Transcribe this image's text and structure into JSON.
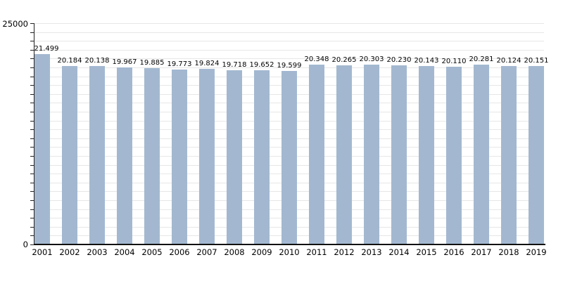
{
  "axis": {
    "y_max_label": "25000",
    "y_min_label": "0"
  },
  "chart_data": {
    "type": "bar",
    "title": "",
    "xlabel": "",
    "ylabel": "",
    "categories": [
      "2001",
      "2002",
      "2003",
      "2004",
      "2005",
      "2006",
      "2007",
      "2008",
      "2009",
      "2010",
      "2011",
      "2012",
      "2013",
      "2014",
      "2015",
      "2016",
      "2017",
      "2018",
      "2019"
    ],
    "values": [
      21499,
      20184,
      20138,
      19967,
      19885,
      19773,
      19824,
      19718,
      19652,
      19599,
      20348,
      20265,
      20303,
      20230,
      20143,
      20110,
      20281,
      20124,
      20151
    ],
    "value_labels": [
      "21.499",
      "20.184",
      "20.138",
      "19.967",
      "19.885",
      "19.773",
      "19.824",
      "19.718",
      "19.652",
      "19.599",
      "20.348",
      "20.265",
      "20.303",
      "20.230",
      "20.143",
      "20.110",
      "20.281",
      "20.124",
      "20.151"
    ],
    "ylim": [
      0,
      25000
    ],
    "y_tick_interval": 1000,
    "y_tick_labels_shown": [
      "25000",
      "0"
    ],
    "grid": "horizontal",
    "legend": "none",
    "bar_color": "#a3b8d0",
    "gridline_color": "#e7e7e7",
    "axis_color": "#222222",
    "text_color": "#000000"
  }
}
